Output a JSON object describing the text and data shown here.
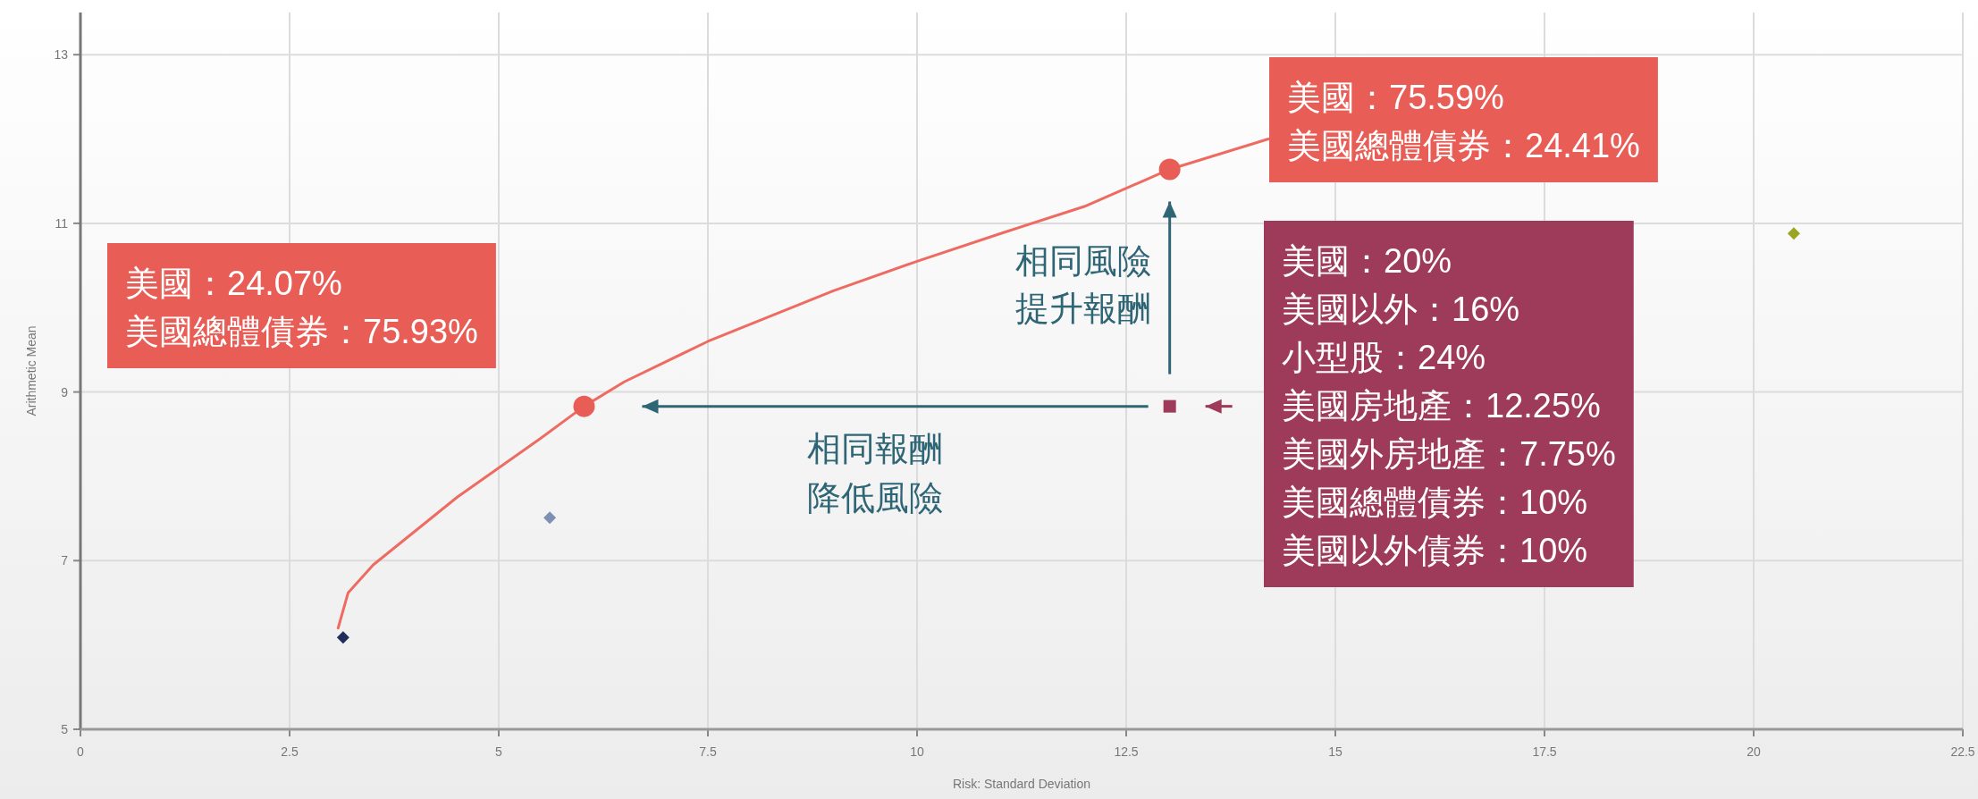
{
  "chart_data": {
    "type": "scatter",
    "xlabel": "Risk: Standard Deviation",
    "ylabel": "Arithmetic Mean",
    "xlim": [
      0,
      22.5
    ],
    "ylim": [
      5,
      13.5
    ],
    "xticks": [
      0,
      2.5,
      5,
      7.5,
      10,
      12.5,
      15,
      17.5,
      20,
      22.5
    ],
    "yticks": [
      5,
      7,
      9,
      11,
      13
    ],
    "grid": true,
    "series": [
      {
        "type": "line",
        "color": "#ee6b62",
        "marker": "none",
        "x": [
          3.08,
          3.2,
          3.5,
          4.5,
          5.5,
          6.02,
          6.5,
          7.5,
          9,
          10,
          11,
          12,
          13.02,
          14.2
        ],
        "values": [
          6.2,
          6.62,
          6.95,
          7.75,
          8.45,
          8.83,
          9.12,
          9.6,
          10.2,
          10.55,
          10.88,
          11.2,
          11.64,
          12.0
        ]
      },
      {
        "color": "#e85d55",
        "marker": "circle",
        "x": [
          6.02,
          13.02
        ],
        "values": [
          8.83,
          11.64
        ]
      },
      {
        "color": "#9e3a5a",
        "marker": "square",
        "x": [
          13.02
        ],
        "values": [
          8.83
        ]
      },
      {
        "color": "#1f2d5a",
        "marker": "diamond",
        "x": [
          3.14
        ],
        "values": [
          6.09
        ]
      },
      {
        "color": "#7d8fb3",
        "marker": "diamond",
        "x": [
          5.61
        ],
        "values": [
          7.51
        ]
      },
      {
        "color": "#9aa520",
        "marker": "diamond",
        "x": [
          20.48
        ],
        "values": [
          10.88
        ]
      }
    ],
    "annotations": [
      "美國：24.07%\n美國總體債券：75.93%",
      "美國：75.59%\n美國總體債券：24.41%",
      "美國：20%\n美國以外：16%\n小型股：24%\n美國房地產：12.25%\n美國外房地產：7.75%\n美國總體債券：10%\n美國以外債券：10%",
      "相同風險",
      "提升報酬",
      "相同報酬",
      "降低風險"
    ]
  }
}
